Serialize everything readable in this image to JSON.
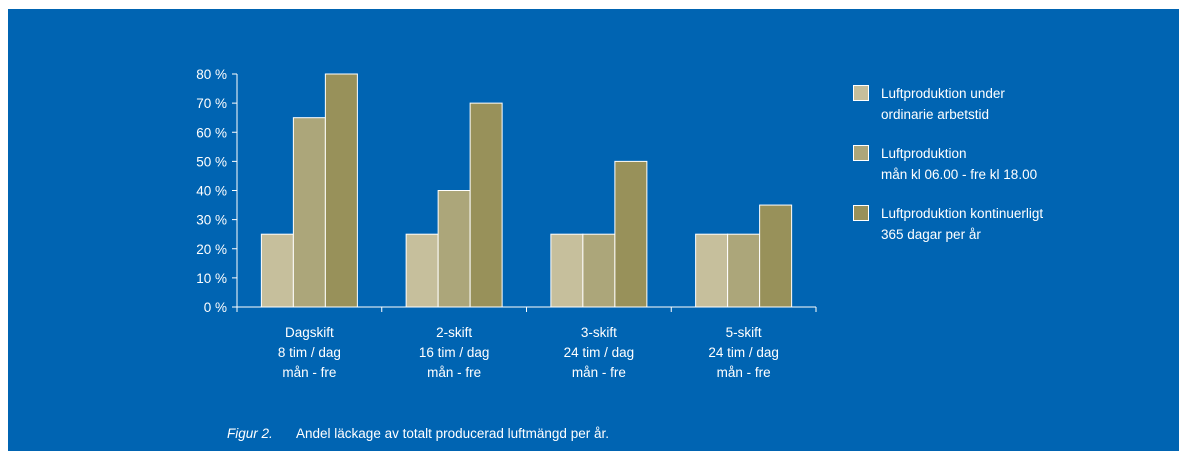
{
  "colors": {
    "background": "#0064b2",
    "foreground": "#ffffff",
    "series": [
      "#c6bf9c",
      "#aca67a",
      "#98915a"
    ]
  },
  "legend": {
    "items": [
      {
        "text": "Luftproduktion under\nordinarie arbetstid"
      },
      {
        "text": "Luftproduktion\nmån kl 06.00 - fre kl 18.00"
      },
      {
        "text": "Luftproduktion kontinuerligt\n365 dagar per år"
      }
    ]
  },
  "caption": {
    "label": "Figur 2.",
    "text": "Andel läckage av totalt producerad luftmängd per år."
  },
  "chart_data": {
    "type": "bar",
    "categories": [
      [
        "Dagskift",
        "8 tim / dag",
        "mån - fre"
      ],
      [
        "2-skift",
        "16 tim / dag",
        "mån - fre"
      ],
      [
        "3-skift",
        "24 tim / dag",
        "mån - fre"
      ],
      [
        "5-skift",
        "24 tim / dag",
        "mån - fre"
      ]
    ],
    "series": [
      {
        "name": "Luftproduktion under ordinarie arbetstid",
        "values": [
          25,
          25,
          25,
          25
        ]
      },
      {
        "name": "Luftproduktion mån kl 06.00 - fre kl 18.00",
        "values": [
          65,
          40,
          25,
          25
        ]
      },
      {
        "name": "Luftproduktion kontinuerligt 365 dagar per år",
        "values": [
          80,
          70,
          50,
          35
        ]
      }
    ],
    "yticks": [
      "0 %",
      "10 %",
      "20 %",
      "30 %",
      "40 %",
      "50 %",
      "60 %",
      "70 %",
      "80 %"
    ],
    "ylim": [
      0,
      80
    ],
    "grid": false,
    "legend_position": "right"
  }
}
